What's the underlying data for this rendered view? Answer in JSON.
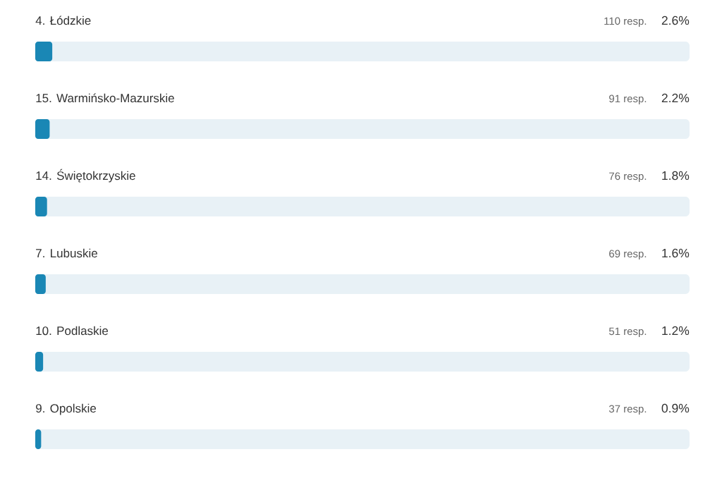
{
  "chart_data": {
    "type": "bar",
    "orientation": "horizontal",
    "categories": [
      "4. Łódzkie",
      "15. Warmińsko-Mazurskie",
      "14. Świętokrzyskie",
      "7. Lubuskie",
      "10. Podlaskie",
      "9. Opolskie"
    ],
    "values": [
      2.6,
      2.2,
      1.8,
      1.6,
      1.2,
      0.9
    ],
    "value_labels": [
      "2.6%",
      "2.2%",
      "1.8%",
      "1.6%",
      "1.2%",
      "0.9%"
    ],
    "color": "#1a87b5",
    "xlim": [
      0,
      100
    ],
    "tick_labels": "y",
    "annotations": [
      "110 resp.",
      "91 resp.",
      "76 resp.",
      "69 resp.",
      "51 resp.",
      "37 resp."
    ]
  }
}
